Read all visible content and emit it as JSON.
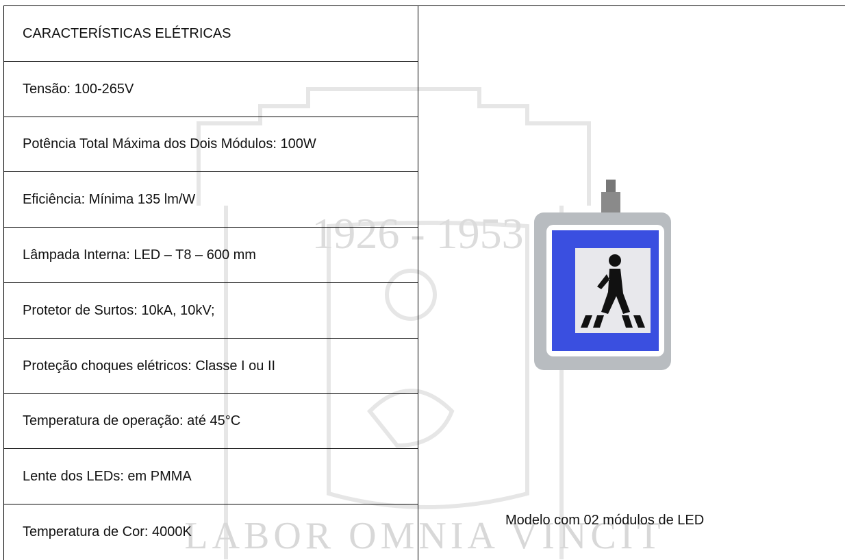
{
  "table": {
    "header": "CARACTERÍSTICAS ELÉTRICAS",
    "rows": [
      "Tensão: 100-265V",
      "Potência Total Máxima dos Dois Módulos: 100W",
      "Eficiência: Mínima 135 lm/W",
      "Lâmpada Interna: LED – T8 – 600 mm",
      "Protetor de Surtos: 10kA, 10kV;",
      "Proteção choques elétricos: Classe I ou II",
      "Temperatura de operação: até 45°C",
      "Lente dos LEDs: em PMMA",
      "Temperatura de Cor: 4000K"
    ]
  },
  "figure": {
    "caption": "Modelo com 02 módulos de LED"
  },
  "watermark": {
    "years": "1926 - 1953",
    "motto": "LABOR OMNIA VINCIT"
  }
}
